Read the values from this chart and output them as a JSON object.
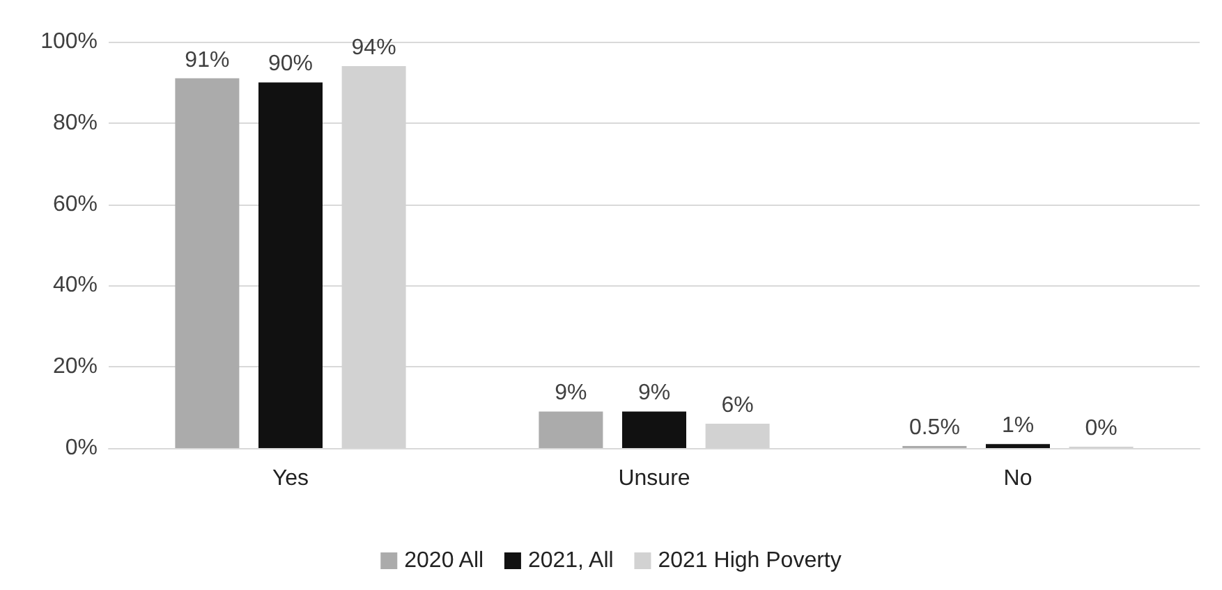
{
  "chart_data": {
    "type": "bar",
    "categories": [
      "Yes",
      "Unsure",
      "No"
    ],
    "series": [
      {
        "name": "2020 All",
        "color": "#ababab",
        "values": [
          91,
          9,
          0.5
        ],
        "value_labels": [
          "91%",
          "9%",
          "0.5%"
        ]
      },
      {
        "name": "2021, All",
        "color": "#111111",
        "values": [
          90,
          9,
          1
        ],
        "value_labels": [
          "90%",
          "9%",
          "1%"
        ]
      },
      {
        "name": "2021 High Poverty",
        "color": "#d2d2d2",
        "values": [
          94,
          6,
          0
        ],
        "value_labels": [
          "94%",
          "6%",
          "0%"
        ]
      }
    ],
    "ylim": [
      0,
      100
    ],
    "yticks": [
      {
        "value": 0,
        "label": "0%"
      },
      {
        "value": 20,
        "label": "20%"
      },
      {
        "value": 40,
        "label": "40%"
      },
      {
        "value": 60,
        "label": "60%"
      },
      {
        "value": 80,
        "label": "80%"
      },
      {
        "value": 100,
        "label": "100%"
      }
    ],
    "grid": "y",
    "legend": "bottom"
  }
}
